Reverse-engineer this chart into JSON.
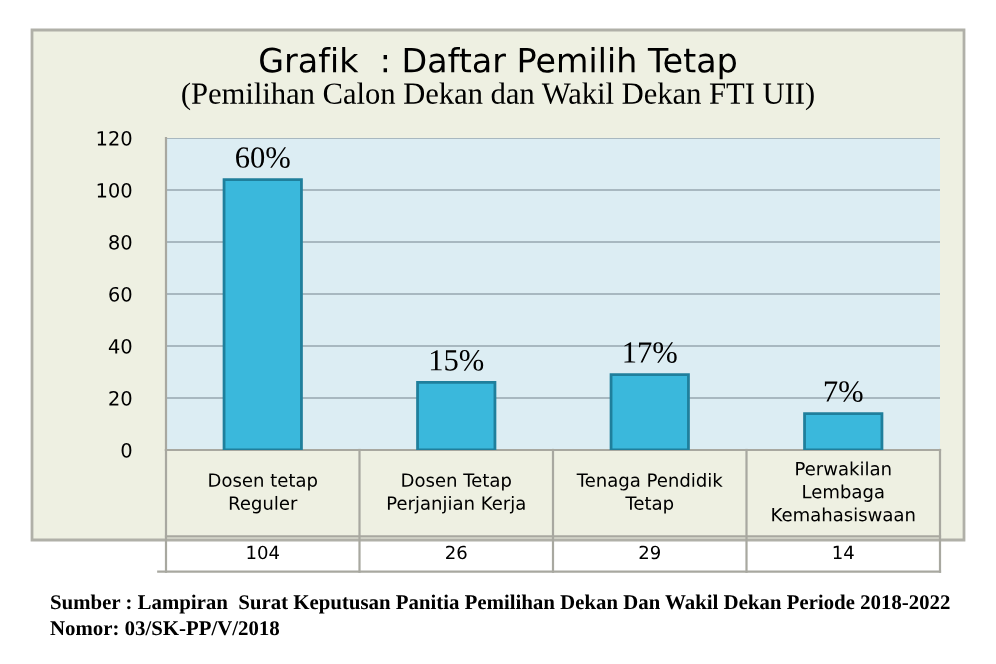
{
  "chart_data": {
    "type": "bar",
    "title": "Grafik  : Daftar Pemilih Tetap",
    "subtitle": "(Pemilihan Calon Dekan dan Wakil Dekan FTI UII)",
    "categories": [
      "Dosen tetap Reguler",
      "Dosen Tetap Perjanjian Kerja",
      "Tenaga Pendidik Tetap",
      "Perwakilan Lembaga Kemahasiswaan"
    ],
    "values": [
      104,
      26,
      29,
      14
    ],
    "data_labels": true,
    "color": "#3ab8dc",
    "ylim": [
      0,
      120
    ],
    "yticks": [
      0,
      20,
      40,
      60,
      80,
      100,
      120
    ],
    "grid": "y",
    "annotations": [
      {
        "text": "60%",
        "x": "Dosen tetap Reguler",
        "y": 104
      },
      {
        "text": "15%",
        "x": "Dosen Tetap Perjanjian Kerja",
        "y": 26
      },
      {
        "text": "17%",
        "x": "Tenaga Pendidik Tetap",
        "y": 29
      },
      {
        "text": "7%",
        "x": "Perwakilan Lembaga Kemahasiswaan",
        "y": 14
      },
      "Sumber : Lampiran  Surat Keputusan Panitia Pemilihan Dekan Dan Wakil Dekan Periode 2018-2022",
      "Nomor: 03/SK-PP/V/2018"
    ]
  }
}
